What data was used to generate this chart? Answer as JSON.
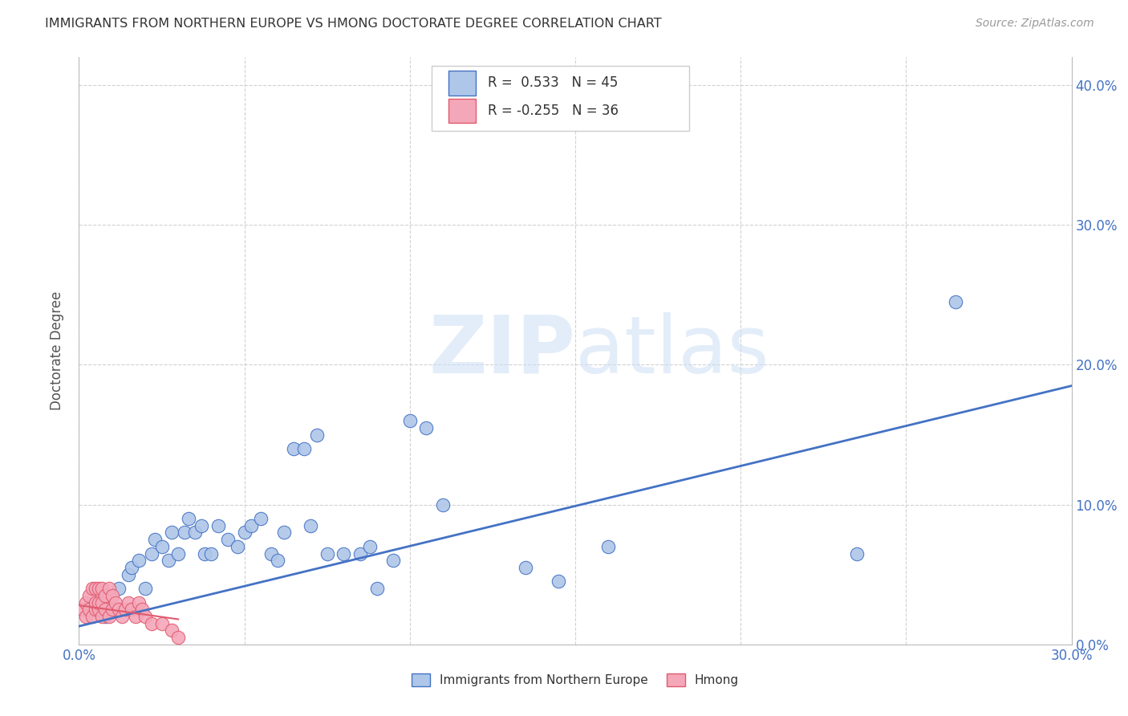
{
  "title": "IMMIGRANTS FROM NORTHERN EUROPE VS HMONG DOCTORATE DEGREE CORRELATION CHART",
  "source": "Source: ZipAtlas.com",
  "ylabel": "Doctorate Degree",
  "xlim": [
    0,
    0.3
  ],
  "ylim": [
    0,
    0.42
  ],
  "xtick_vals": [
    0.0,
    0.05,
    0.1,
    0.15,
    0.2,
    0.25,
    0.3
  ],
  "ytick_vals": [
    0.0,
    0.1,
    0.2,
    0.3,
    0.4
  ],
  "legend_label1": "Immigrants from Northern Europe",
  "legend_label2": "Hmong",
  "r1": 0.533,
  "n1": 45,
  "r2": -0.255,
  "n2": 36,
  "color_blue": "#aec6e8",
  "color_pink": "#f4a7b9",
  "color_trendline": "#4472C4",
  "color_trendline2": "#e05a6e",
  "color_axis": "#4472C4",
  "color_title": "#333333",
  "color_grid": "#cccccc",
  "watermark_zip": "ZIP",
  "watermark_atlas": "atlas",
  "blue_scatter_x": [
    0.008,
    0.012,
    0.015,
    0.016,
    0.018,
    0.02,
    0.022,
    0.023,
    0.025,
    0.027,
    0.028,
    0.03,
    0.032,
    0.033,
    0.035,
    0.037,
    0.038,
    0.04,
    0.042,
    0.045,
    0.048,
    0.05,
    0.052,
    0.055,
    0.058,
    0.06,
    0.062,
    0.065,
    0.068,
    0.07,
    0.072,
    0.075,
    0.08,
    0.085,
    0.088,
    0.09,
    0.095,
    0.1,
    0.105,
    0.11,
    0.135,
    0.145,
    0.16,
    0.235,
    0.265
  ],
  "blue_scatter_y": [
    0.02,
    0.04,
    0.05,
    0.055,
    0.06,
    0.04,
    0.065,
    0.075,
    0.07,
    0.06,
    0.08,
    0.065,
    0.08,
    0.09,
    0.08,
    0.085,
    0.065,
    0.065,
    0.085,
    0.075,
    0.07,
    0.08,
    0.085,
    0.09,
    0.065,
    0.06,
    0.08,
    0.14,
    0.14,
    0.085,
    0.15,
    0.065,
    0.065,
    0.065,
    0.07,
    0.04,
    0.06,
    0.16,
    0.155,
    0.1,
    0.055,
    0.045,
    0.07,
    0.065,
    0.245
  ],
  "pink_scatter_x": [
    0.001,
    0.002,
    0.002,
    0.003,
    0.003,
    0.004,
    0.004,
    0.005,
    0.005,
    0.005,
    0.006,
    0.006,
    0.006,
    0.007,
    0.007,
    0.007,
    0.008,
    0.008,
    0.009,
    0.009,
    0.01,
    0.01,
    0.011,
    0.012,
    0.013,
    0.014,
    0.015,
    0.016,
    0.017,
    0.018,
    0.019,
    0.02,
    0.022,
    0.025,
    0.028,
    0.03
  ],
  "pink_scatter_y": [
    0.025,
    0.02,
    0.03,
    0.025,
    0.035,
    0.02,
    0.04,
    0.025,
    0.03,
    0.04,
    0.025,
    0.03,
    0.04,
    0.02,
    0.03,
    0.04,
    0.025,
    0.035,
    0.02,
    0.04,
    0.025,
    0.035,
    0.03,
    0.025,
    0.02,
    0.025,
    0.03,
    0.025,
    0.02,
    0.03,
    0.025,
    0.02,
    0.015,
    0.015,
    0.01,
    0.005
  ],
  "trendline1_x": [
    0.0,
    0.3
  ],
  "trendline1_y": [
    0.013,
    0.185
  ],
  "trendline2_x": [
    0.0,
    0.03
  ],
  "trendline2_y": [
    0.028,
    0.018
  ]
}
